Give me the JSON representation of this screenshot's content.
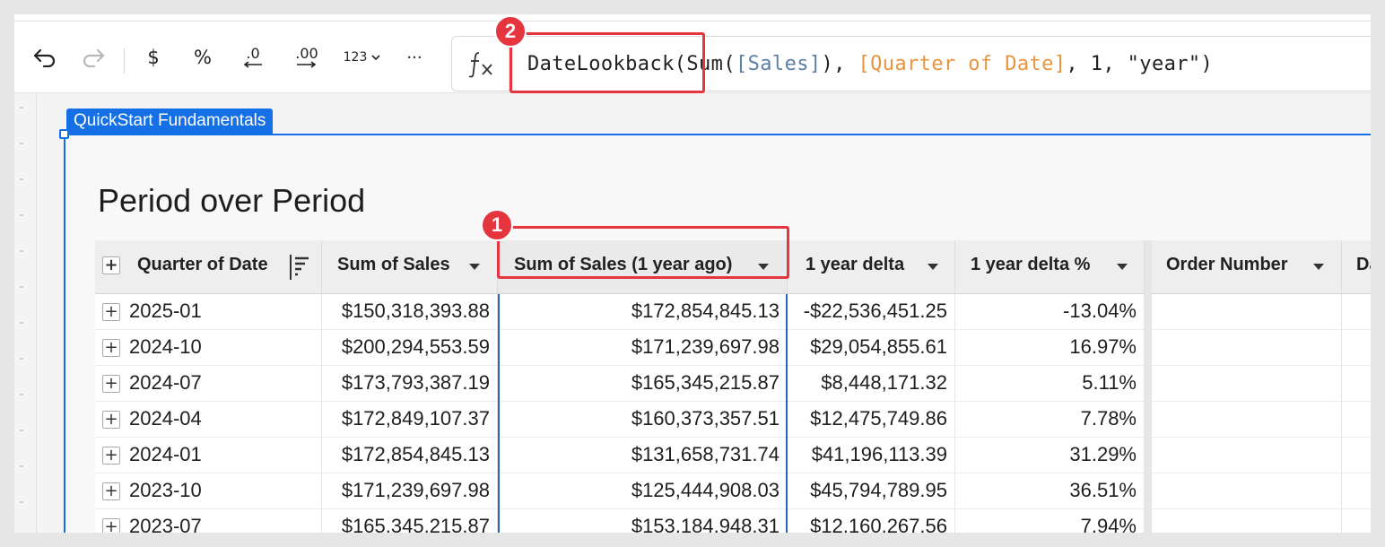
{
  "toolbar": {
    "undo_icon": "undo-icon",
    "redo_icon": "redo-icon",
    "currency_label": "$",
    "percent_label": "%",
    "decrease_decimal_label": ".0",
    "increase_decimal_label": ".00",
    "number_format_label": "123",
    "more_label": "···"
  },
  "formula": {
    "fx_icon": "function-icon",
    "fn_name": "DateLookback",
    "open": "(Sum(",
    "field1": "[Sales]",
    "mid": "), ",
    "field2": "[Quarter of Date]",
    "rest": ", 1, \"year\")"
  },
  "annotations": {
    "badge1": "1",
    "badge2": "2",
    "color": "#e5353f"
  },
  "element": {
    "tag": "QuickStart Fundamentals",
    "title": "Period over Period",
    "accent": "#1570e6"
  },
  "table": {
    "columns": [
      "Quarter of Date",
      "Sum of Sales",
      "Sum of Sales (1 year ago)",
      "1 year delta",
      "1 year delta %",
      "Order Number",
      "Da"
    ],
    "rows": [
      [
        "2025-01",
        "$150,318,393.88",
        "$172,854,845.13",
        "-$22,536,451.25",
        "-13.04%"
      ],
      [
        "2024-10",
        "$200,294,553.59",
        "$171,239,697.98",
        "$29,054,855.61",
        "16.97%"
      ],
      [
        "2024-07",
        "$173,793,387.19",
        "$165,345,215.87",
        "$8,448,171.32",
        "5.11%"
      ],
      [
        "2024-04",
        "$172,849,107.37",
        "$160,373,357.51",
        "$12,475,749.86",
        "7.78%"
      ],
      [
        "2024-01",
        "$172,854,845.13",
        "$131,658,731.74",
        "$41,196,113.39",
        "31.29%"
      ],
      [
        "2023-10",
        "$171,239,697.98",
        "$125,444,908.03",
        "$45,794,789.95",
        "36.51%"
      ],
      [
        "2023-07",
        "$165,345,215.87",
        "$153,184,948.31",
        "$12,160,267.56",
        "7.94%"
      ]
    ],
    "expand_glyph": "+"
  }
}
